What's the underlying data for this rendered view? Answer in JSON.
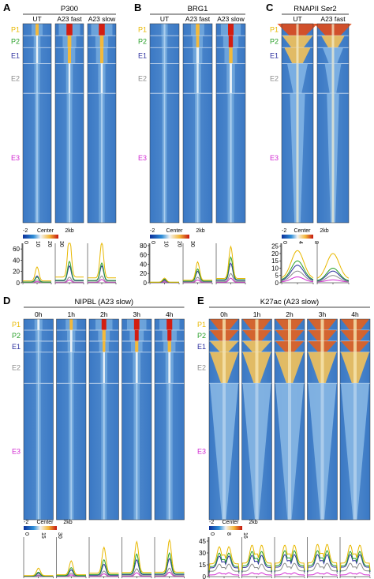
{
  "panels": [
    {
      "id": "A",
      "letter": "A",
      "title": "P300",
      "columns": [
        "UT",
        "A23 fast",
        "A23 slow"
      ],
      "colorbar": {
        "ticks": [
          "0",
          "10",
          "20",
          "30"
        ]
      },
      "profile": {
        "yticks": [
          "0",
          "20",
          "40",
          "60"
        ],
        "ymax": 70,
        "peaks": {
          "P1": [
            28,
            85,
            72
          ],
          "P2": [
            10,
            38,
            35
          ],
          "E1": [
            12,
            30,
            30
          ],
          "E2": [
            5,
            10,
            12
          ],
          "E3": [
            2,
            5,
            6
          ]
        }
      }
    },
    {
      "id": "B",
      "letter": "B",
      "title": "BRG1",
      "columns": [
        "UT",
        "A23 fast",
        "A23 slow"
      ],
      "colorbar": {
        "ticks": [
          "0",
          "10",
          "20",
          "30"
        ]
      },
      "profile": {
        "yticks": [
          "0",
          "20",
          "40",
          "60",
          "80"
        ],
        "ymax": 85,
        "peaks": {
          "P1": [
            10,
            45,
            78
          ],
          "P2": [
            8,
            30,
            55
          ],
          "E1": [
            6,
            25,
            42
          ],
          "E2": [
            4,
            12,
            20
          ],
          "E3": [
            2,
            6,
            10
          ]
        }
      }
    },
    {
      "id": "C",
      "letter": "C",
      "title": "RNAPII Ser2",
      "columns": [
        "UT",
        "A23 fast"
      ],
      "colorbar": {
        "ticks": [
          "0",
          "4",
          "8"
        ]
      },
      "profile": {
        "yticks": [
          "0",
          "5",
          "10",
          "15",
          "20",
          "25"
        ],
        "ymax": 27,
        "peaks": {
          "P1": [
            22,
            20
          ],
          "P2": [
            15,
            10
          ],
          "E1": [
            12,
            8
          ],
          "E2": [
            8,
            5
          ],
          "E3": [
            4,
            2
          ]
        }
      }
    },
    {
      "id": "D",
      "letter": "D",
      "title": "NIPBL (A23 slow)",
      "columns": [
        "0h",
        "1h",
        "2h",
        "3h",
        "4h"
      ],
      "colorbar": {
        "ticks": [
          "0",
          "15",
          "30"
        ]
      },
      "profile": {
        "yticks": [],
        "ymax": 70,
        "peaks": {
          "P1": [
            15,
            28,
            52,
            62,
            65
          ],
          "P2": [
            8,
            16,
            30,
            40,
            42
          ],
          "E1": [
            6,
            12,
            22,
            30,
            32
          ],
          "E2": [
            3,
            6,
            10,
            14,
            15
          ],
          "E3": [
            2,
            3,
            5,
            7,
            8
          ]
        }
      }
    },
    {
      "id": "E",
      "letter": "E",
      "title": "K27ac (A23 slow)",
      "columns": [
        "0h",
        "1h",
        "2h",
        "3h",
        "4h"
      ],
      "colorbar": {
        "ticks": [
          "0",
          "8",
          "16"
        ]
      },
      "profile": {
        "yticks": [
          "0",
          "15",
          "30",
          "45"
        ],
        "ymax": 50,
        "peaks": {
          "P1": [
            38,
            40,
            40,
            41,
            40
          ],
          "P2": [
            30,
            32,
            33,
            33,
            32
          ],
          "E1": [
            26,
            27,
            28,
            28,
            28
          ],
          "E2": [
            16,
            16,
            17,
            17,
            17
          ],
          "E3": [
            5,
            5,
            5,
            5,
            5
          ]
        }
      }
    }
  ],
  "cluster_labels": [
    "P1",
    "P2",
    "E1",
    "E2",
    "E3"
  ],
  "cluster_colors": {
    "P1": "#e8b800",
    "P2": "#2aa02a",
    "E1": "#2b2f9e",
    "E2": "#8c8c8c",
    "E3": "#d12ad1"
  },
  "colorbar_axis": {
    "left": "-2",
    "center": "Center",
    "right": "2kb"
  }
}
